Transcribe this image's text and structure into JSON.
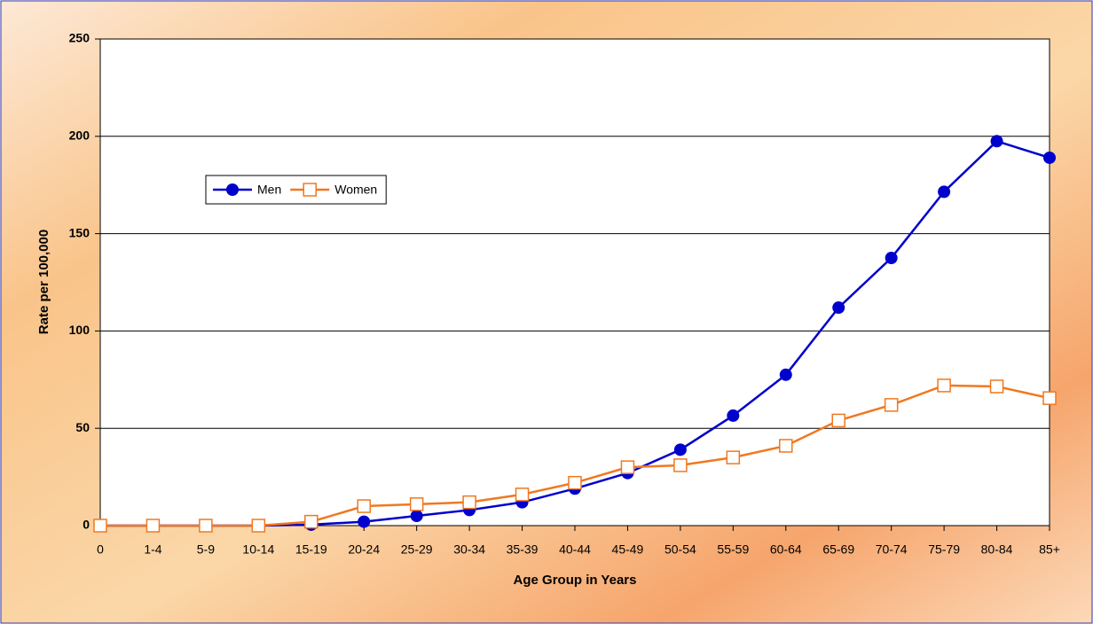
{
  "chart_data": {
    "type": "line",
    "xlabel": "Age Group in Years",
    "ylabel": "Rate per 100,000",
    "categories": [
      "0",
      "1-4",
      "5-9",
      "10-14",
      "15-19",
      "20-24",
      "25-29",
      "30-34",
      "35-39",
      "40-44",
      "45-49",
      "50-54",
      "55-59",
      "60-64",
      "65-69",
      "70-74",
      "75-79",
      "80-84",
      "85+"
    ],
    "series": [
      {
        "name": "Men",
        "color": "#0000cc",
        "marker": "circle",
        "values": [
          0,
          0,
          0,
          0,
          0.5,
          2,
          5,
          8,
          12,
          19,
          27,
          39,
          56.5,
          77.5,
          112,
          137.5,
          171.5,
          197.5,
          189
        ]
      },
      {
        "name": "Women",
        "color": "#f07820",
        "marker": "square",
        "values": [
          0,
          0,
          0,
          0,
          2,
          10,
          11,
          12,
          16,
          22,
          30,
          31,
          35,
          41,
          54,
          62,
          72,
          71.5,
          65.5
        ]
      }
    ],
    "ylim": [
      0,
      250
    ],
    "yticks": [
      0,
      50,
      100,
      150,
      200,
      250
    ],
    "grid": true,
    "legend": "upper left"
  }
}
